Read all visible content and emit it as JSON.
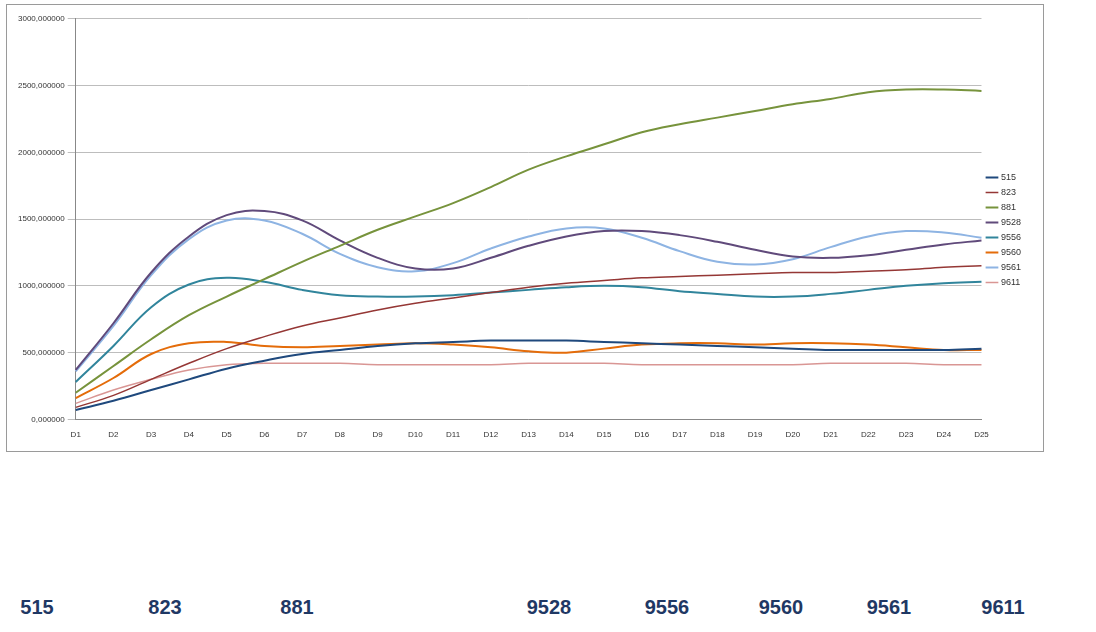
{
  "chart_data": {
    "type": "line",
    "categories": [
      "D1",
      "D2",
      "D3",
      "D4",
      "D5",
      "D6",
      "D7",
      "D8",
      "D9",
      "D10",
      "D11",
      "D12",
      "D13",
      "D14",
      "D15",
      "D16",
      "D17",
      "D18",
      "D19",
      "D20",
      "D21",
      "D22",
      "D23",
      "D24",
      "D25"
    ],
    "series": [
      {
        "name": "515",
        "color": "#1f497d",
        "values": [
          70,
          140,
          220,
          300,
          380,
          440,
          490,
          520,
          550,
          570,
          580,
          590,
          590,
          590,
          580,
          570,
          560,
          550,
          540,
          530,
          520,
          520,
          520,
          520,
          530
        ]
      },
      {
        "name": "823",
        "color": "#953735",
        "values": [
          90,
          180,
          300,
          420,
          530,
          620,
          700,
          760,
          820,
          870,
          910,
          950,
          990,
          1020,
          1040,
          1060,
          1070,
          1080,
          1090,
          1100,
          1100,
          1110,
          1120,
          1140,
          1150
        ]
      },
      {
        "name": "881",
        "color": "#77933c",
        "values": [
          200,
          400,
          600,
          780,
          920,
          1050,
          1180,
          1300,
          1420,
          1520,
          1620,
          1740,
          1870,
          1970,
          2060,
          2150,
          2210,
          2260,
          2310,
          2360,
          2400,
          2450,
          2470,
          2470,
          2460
        ]
      },
      {
        "name": "9528",
        "color": "#604a7b",
        "values": [
          370,
          720,
          1100,
          1370,
          1530,
          1560,
          1490,
          1340,
          1210,
          1130,
          1130,
          1210,
          1300,
          1370,
          1410,
          1410,
          1380,
          1330,
          1270,
          1220,
          1210,
          1230,
          1270,
          1310,
          1340
        ]
      },
      {
        "name": "9556",
        "color": "#31859c",
        "values": [
          280,
          550,
          840,
          1010,
          1060,
          1030,
          970,
          930,
          920,
          920,
          930,
          950,
          970,
          990,
          1000,
          990,
          960,
          940,
          920,
          920,
          940,
          970,
          1000,
          1020,
          1030
        ]
      },
      {
        "name": "9560",
        "color": "#e46c0a",
        "values": [
          160,
          310,
          490,
          570,
          580,
          550,
          540,
          550,
          560,
          570,
          560,
          540,
          510,
          500,
          530,
          560,
          570,
          570,
          560,
          570,
          570,
          560,
          540,
          520,
          520
        ]
      },
      {
        "name": "9561",
        "color": "#8eb4e3",
        "values": [
          360,
          700,
          1080,
          1350,
          1490,
          1490,
          1390,
          1240,
          1140,
          1110,
          1170,
          1280,
          1370,
          1430,
          1430,
          1360,
          1260,
          1180,
          1160,
          1200,
          1290,
          1370,
          1410,
          1400,
          1360
        ]
      },
      {
        "name": "9611",
        "color": "#d99694",
        "values": [
          120,
          220,
          300,
          370,
          410,
          420,
          420,
          420,
          410,
          410,
          410,
          410,
          420,
          420,
          420,
          410,
          410,
          410,
          410,
          410,
          420,
          420,
          420,
          410,
          410
        ]
      }
    ],
    "ylim": [
      0,
      3000
    ],
    "yticks": [
      {
        "value": 0,
        "label": "0,000000"
      },
      {
        "value": 500,
        "label": "500,000000"
      },
      {
        "value": 1000,
        "label": "1000,000000"
      },
      {
        "value": 1500,
        "label": "1500,000000"
      },
      {
        "value": 2000,
        "label": "2000,000000"
      },
      {
        "value": 2500,
        "label": "2500,000000"
      },
      {
        "value": 3000,
        "label": "3000,000000"
      }
    ],
    "grid": true,
    "legend": "right"
  }
}
